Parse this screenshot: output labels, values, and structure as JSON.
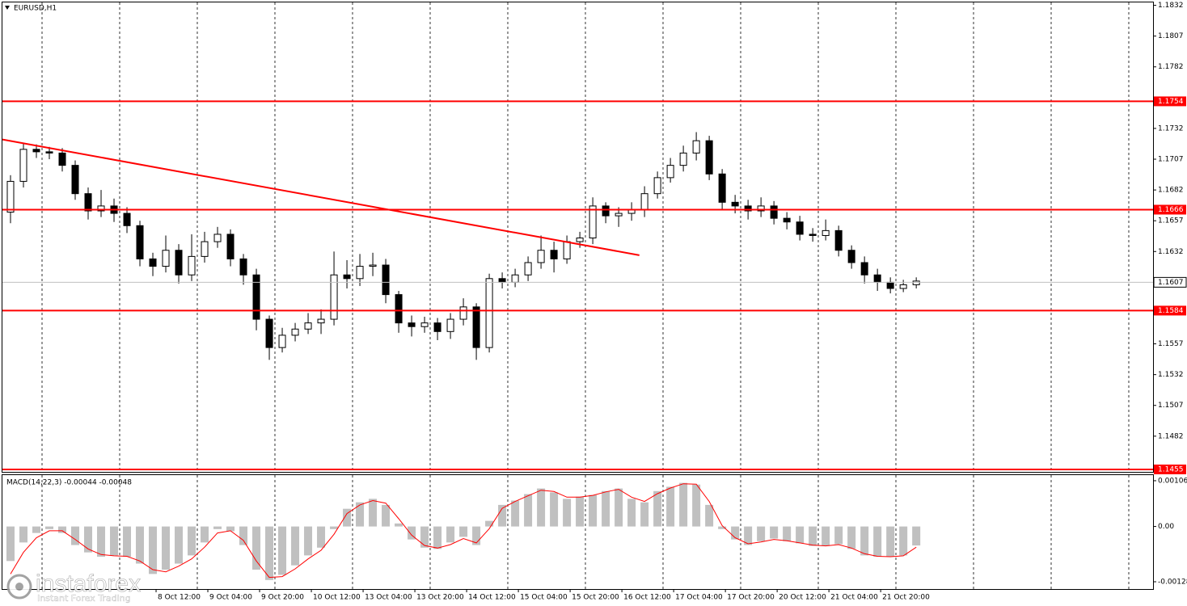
{
  "chart_data": [
    {
      "type": "candlestick",
      "title": "EURUSD,H1",
      "xlim": [
        0,
        88.8
      ],
      "ylim": [
        1.1453,
        1.1835
      ],
      "yticks": [
        1.1832,
        1.1807,
        1.1782,
        1.1732,
        1.1707,
        1.1682,
        1.1657,
        1.1632,
        1.1557,
        1.1532,
        1.1507,
        1.1482
      ],
      "up_color": "#ffffff",
      "down_color": "#000000",
      "outline_color": "#000000",
      "open": [
        1.1664,
        1.1689,
        1.1715,
        1.1713,
        1.1712,
        1.1702,
        1.1679,
        1.1665,
        1.1669,
        1.1663,
        1.1653,
        1.1626,
        1.162,
        1.1633,
        1.1613,
        1.1628,
        1.164,
        1.1646,
        1.1626,
        1.1613,
        1.1577,
        1.1554,
        1.1564,
        1.1569,
        1.1574,
        1.1577,
        1.1613,
        1.161,
        1.162,
        1.1621,
        1.1597,
        1.1574,
        1.1571,
        1.1574,
        1.1567,
        1.1577,
        1.1587,
        1.1554,
        1.161,
        1.1607,
        1.1613,
        1.1623,
        1.1633,
        1.1626,
        1.164,
        1.1643,
        1.1669,
        1.1661,
        1.1663,
        1.1666,
        1.1679,
        1.1692,
        1.1702,
        1.1712,
        1.1722,
        1.1695,
        1.1672,
        1.1669,
        1.1665,
        1.1669,
        1.1659,
        1.1656,
        1.1646,
        1.1645,
        1.1649,
        1.1633,
        1.1623,
        1.1613,
        1.1607,
        1.1602,
        1.1605
      ],
      "high": [
        1.1694,
        1.172,
        1.1719,
        1.1717,
        1.1716,
        1.1706,
        1.1684,
        1.1682,
        1.1675,
        1.1668,
        1.1657,
        1.1631,
        1.1645,
        1.1638,
        1.1646,
        1.1648,
        1.1652,
        1.165,
        1.163,
        1.1618,
        1.158,
        1.157,
        1.1574,
        1.1582,
        1.1585,
        1.1632,
        1.1625,
        1.163,
        1.1631,
        1.1626,
        1.16,
        1.158,
        1.1579,
        1.1578,
        1.1582,
        1.1594,
        1.159,
        1.1614,
        1.1615,
        1.1618,
        1.1628,
        1.1645,
        1.164,
        1.1645,
        1.1648,
        1.1676,
        1.1672,
        1.1668,
        1.1672,
        1.1685,
        1.1697,
        1.1708,
        1.1718,
        1.1729,
        1.1726,
        1.1699,
        1.1678,
        1.1674,
        1.1676,
        1.1673,
        1.1664,
        1.1661,
        1.1651,
        1.1658,
        1.1653,
        1.1637,
        1.1628,
        1.1618,
        1.1611,
        1.1609,
        1.1611
      ],
      "low": [
        1.1655,
        1.1684,
        1.1708,
        1.1707,
        1.1697,
        1.1674,
        1.1658,
        1.166,
        1.1656,
        1.1647,
        1.162,
        1.1612,
        1.1615,
        1.1606,
        1.1608,
        1.1623,
        1.1635,
        1.162,
        1.1605,
        1.1568,
        1.1544,
        1.155,
        1.1559,
        1.1565,
        1.1565,
        1.1572,
        1.1602,
        1.1604,
        1.1612,
        1.159,
        1.1566,
        1.1563,
        1.1566,
        1.156,
        1.1561,
        1.1572,
        1.1544,
        1.155,
        1.1602,
        1.1603,
        1.1608,
        1.1618,
        1.1615,
        1.1622,
        1.1635,
        1.1638,
        1.1655,
        1.1652,
        1.1657,
        1.166,
        1.1675,
        1.1688,
        1.1697,
        1.1706,
        1.169,
        1.1666,
        1.1663,
        1.1658,
        1.166,
        1.1654,
        1.165,
        1.1641,
        1.164,
        1.1641,
        1.1628,
        1.1618,
        1.1606,
        1.16,
        1.1598,
        1.1599,
        1.1602
      ],
      "close": [
        1.1689,
        1.1715,
        1.1713,
        1.1712,
        1.1702,
        1.1679,
        1.1665,
        1.1669,
        1.1663,
        1.1653,
        1.1626,
        1.162,
        1.1633,
        1.1613,
        1.1628,
        1.164,
        1.1646,
        1.1626,
        1.1613,
        1.1577,
        1.1554,
        1.1564,
        1.1569,
        1.1574,
        1.1577,
        1.1613,
        1.161,
        1.162,
        1.1621,
        1.1597,
        1.1574,
        1.1571,
        1.1574,
        1.1567,
        1.1577,
        1.1587,
        1.1554,
        1.161,
        1.1607,
        1.1613,
        1.1623,
        1.1633,
        1.1626,
        1.164,
        1.1643,
        1.1669,
        1.1661,
        1.1663,
        1.1666,
        1.1679,
        1.1692,
        1.1702,
        1.1712,
        1.1722,
        1.1695,
        1.1672,
        1.1669,
        1.1665,
        1.1669,
        1.1659,
        1.1656,
        1.1646,
        1.1645,
        1.1649,
        1.1633,
        1.1623,
        1.1613,
        1.1607,
        1.1602,
        1.1605,
        1.1608
      ],
      "levels": [
        {
          "value": 1.1754,
          "color": "#ff0000"
        },
        {
          "value": 1.1666,
          "color": "#ff0000"
        },
        {
          "value": 1.1584,
          "color": "#ff0000"
        },
        {
          "value": 1.1455,
          "color": "#ff0000"
        }
      ],
      "current_price": 1.1607,
      "trendline": {
        "x": [
          -0.125,
          49.1
        ],
        "y": [
          1.1723,
          1.1629
        ],
        "color": "#ff0000"
      }
    },
    {
      "type": "macd",
      "title": "MACD(14,22,3) -0.00044 -0.00048",
      "xlim": [
        0,
        88.8
      ],
      "ylim": [
        -0.00143,
        0.00119
      ],
      "yticks": [
        0.00106,
        {
          "value": 0,
          "label": "0.00"
        },
        -0.00128
      ],
      "xticks": [
        {
          "value": 11.75,
          "label": "8 Oct 12:00"
        },
        {
          "value": 15.75,
          "label": "9 Oct 04:00"
        },
        {
          "value": 19.75,
          "label": "9 Oct 20:00"
        },
        {
          "value": 23.75,
          "label": "10 Oct 12:00"
        },
        {
          "value": 27.75,
          "label": "13 Oct 04:00"
        },
        {
          "value": 31.75,
          "label": "13 Oct 20:00"
        },
        {
          "value": 35.75,
          "label": "14 Oct 12:00"
        },
        {
          "value": 39.75,
          "label": "15 Oct 04:00"
        },
        {
          "value": 43.75,
          "label": "15 Oct 20:00"
        },
        {
          "value": 47.75,
          "label": "16 Oct 12:00"
        },
        {
          "value": 51.75,
          "label": "17 Oct 04:00"
        },
        {
          "value": 55.75,
          "label": "17 Oct 20:00"
        },
        {
          "value": 59.75,
          "label": "20 Oct 12:00"
        },
        {
          "value": 63.75,
          "label": "21 Oct 04:00"
        },
        {
          "value": 67.75,
          "label": "21 Oct 20:00"
        }
      ],
      "histogram_color": "#c0c0c0",
      "signal_color": "#ff0000",
      "histogram": [
        -0.0008,
        -0.00037,
        -0.00015,
        -6e-05,
        -0.00015,
        -0.00043,
        -0.0006,
        -0.0007,
        -0.00067,
        -0.0007,
        -0.00086,
        -0.0011,
        -0.001,
        -0.00086,
        -0.00067,
        -0.00037,
        -6e-05,
        -0.00011,
        -0.00043,
        -0.001,
        -0.00124,
        -0.00112,
        -0.0009,
        -0.00067,
        -0.00049,
        -6e-05,
        0.00041,
        0.00056,
        0.00064,
        0.0005,
        7e-05,
        -0.0003,
        -0.00049,
        -0.00052,
        -0.00037,
        -0.00024,
        -0.00043,
        0.00013,
        0.0005,
        0.0006,
        0.00075,
        0.00088,
        0.00079,
        0.00064,
        0.00069,
        0.00073,
        0.00082,
        0.00088,
        0.00064,
        0.00056,
        0.00082,
        0.00092,
        0.00101,
        0.00097,
        0.0005,
        -6e-05,
        -0.0003,
        -0.00043,
        -0.00034,
        -0.00028,
        -0.00034,
        -0.00039,
        -0.00045,
        -0.00045,
        -0.00041,
        -0.00052,
        -0.00067,
        -0.0007,
        -0.0007,
        -0.00067,
        -0.00044
      ],
      "signal": [
        -0.0011,
        -0.0006,
        -0.00026,
        -0.0001,
        -0.0001,
        -0.0003,
        -0.00052,
        -0.00065,
        -0.00068,
        -0.00069,
        -0.0008,
        -0.001,
        -0.00105,
        -0.00092,
        -0.00075,
        -0.00048,
        -0.00015,
        -0.0001,
        -0.00032,
        -0.0008,
        -0.00118,
        -0.00116,
        -0.00098,
        -0.00075,
        -0.00055,
        -0.00018,
        0.0003,
        0.0005,
        0.0006,
        0.00054,
        0.00018,
        -0.0002,
        -0.00044,
        -0.0005,
        -0.00042,
        -0.00028,
        -0.00038,
        -5e-05,
        0.00042,
        0.00058,
        0.00071,
        0.00084,
        0.00081,
        0.00068,
        0.00068,
        0.00072,
        0.0008,
        0.00086,
        0.00068,
        0.00058,
        0.00076,
        0.00089,
        0.00099,
        0.00098,
        0.00058,
        2e-05,
        -0.00026,
        -0.0004,
        -0.00036,
        -0.0003,
        -0.00033,
        -0.00038,
        -0.00043,
        -0.00045,
        -0.00042,
        -0.0005,
        -0.00063,
        -0.00069,
        -0.0007,
        -0.00068,
        -0.00048
      ]
    }
  ],
  "watermark": {
    "name": "instaforex",
    "tagline": "Instant Forex Trading"
  }
}
